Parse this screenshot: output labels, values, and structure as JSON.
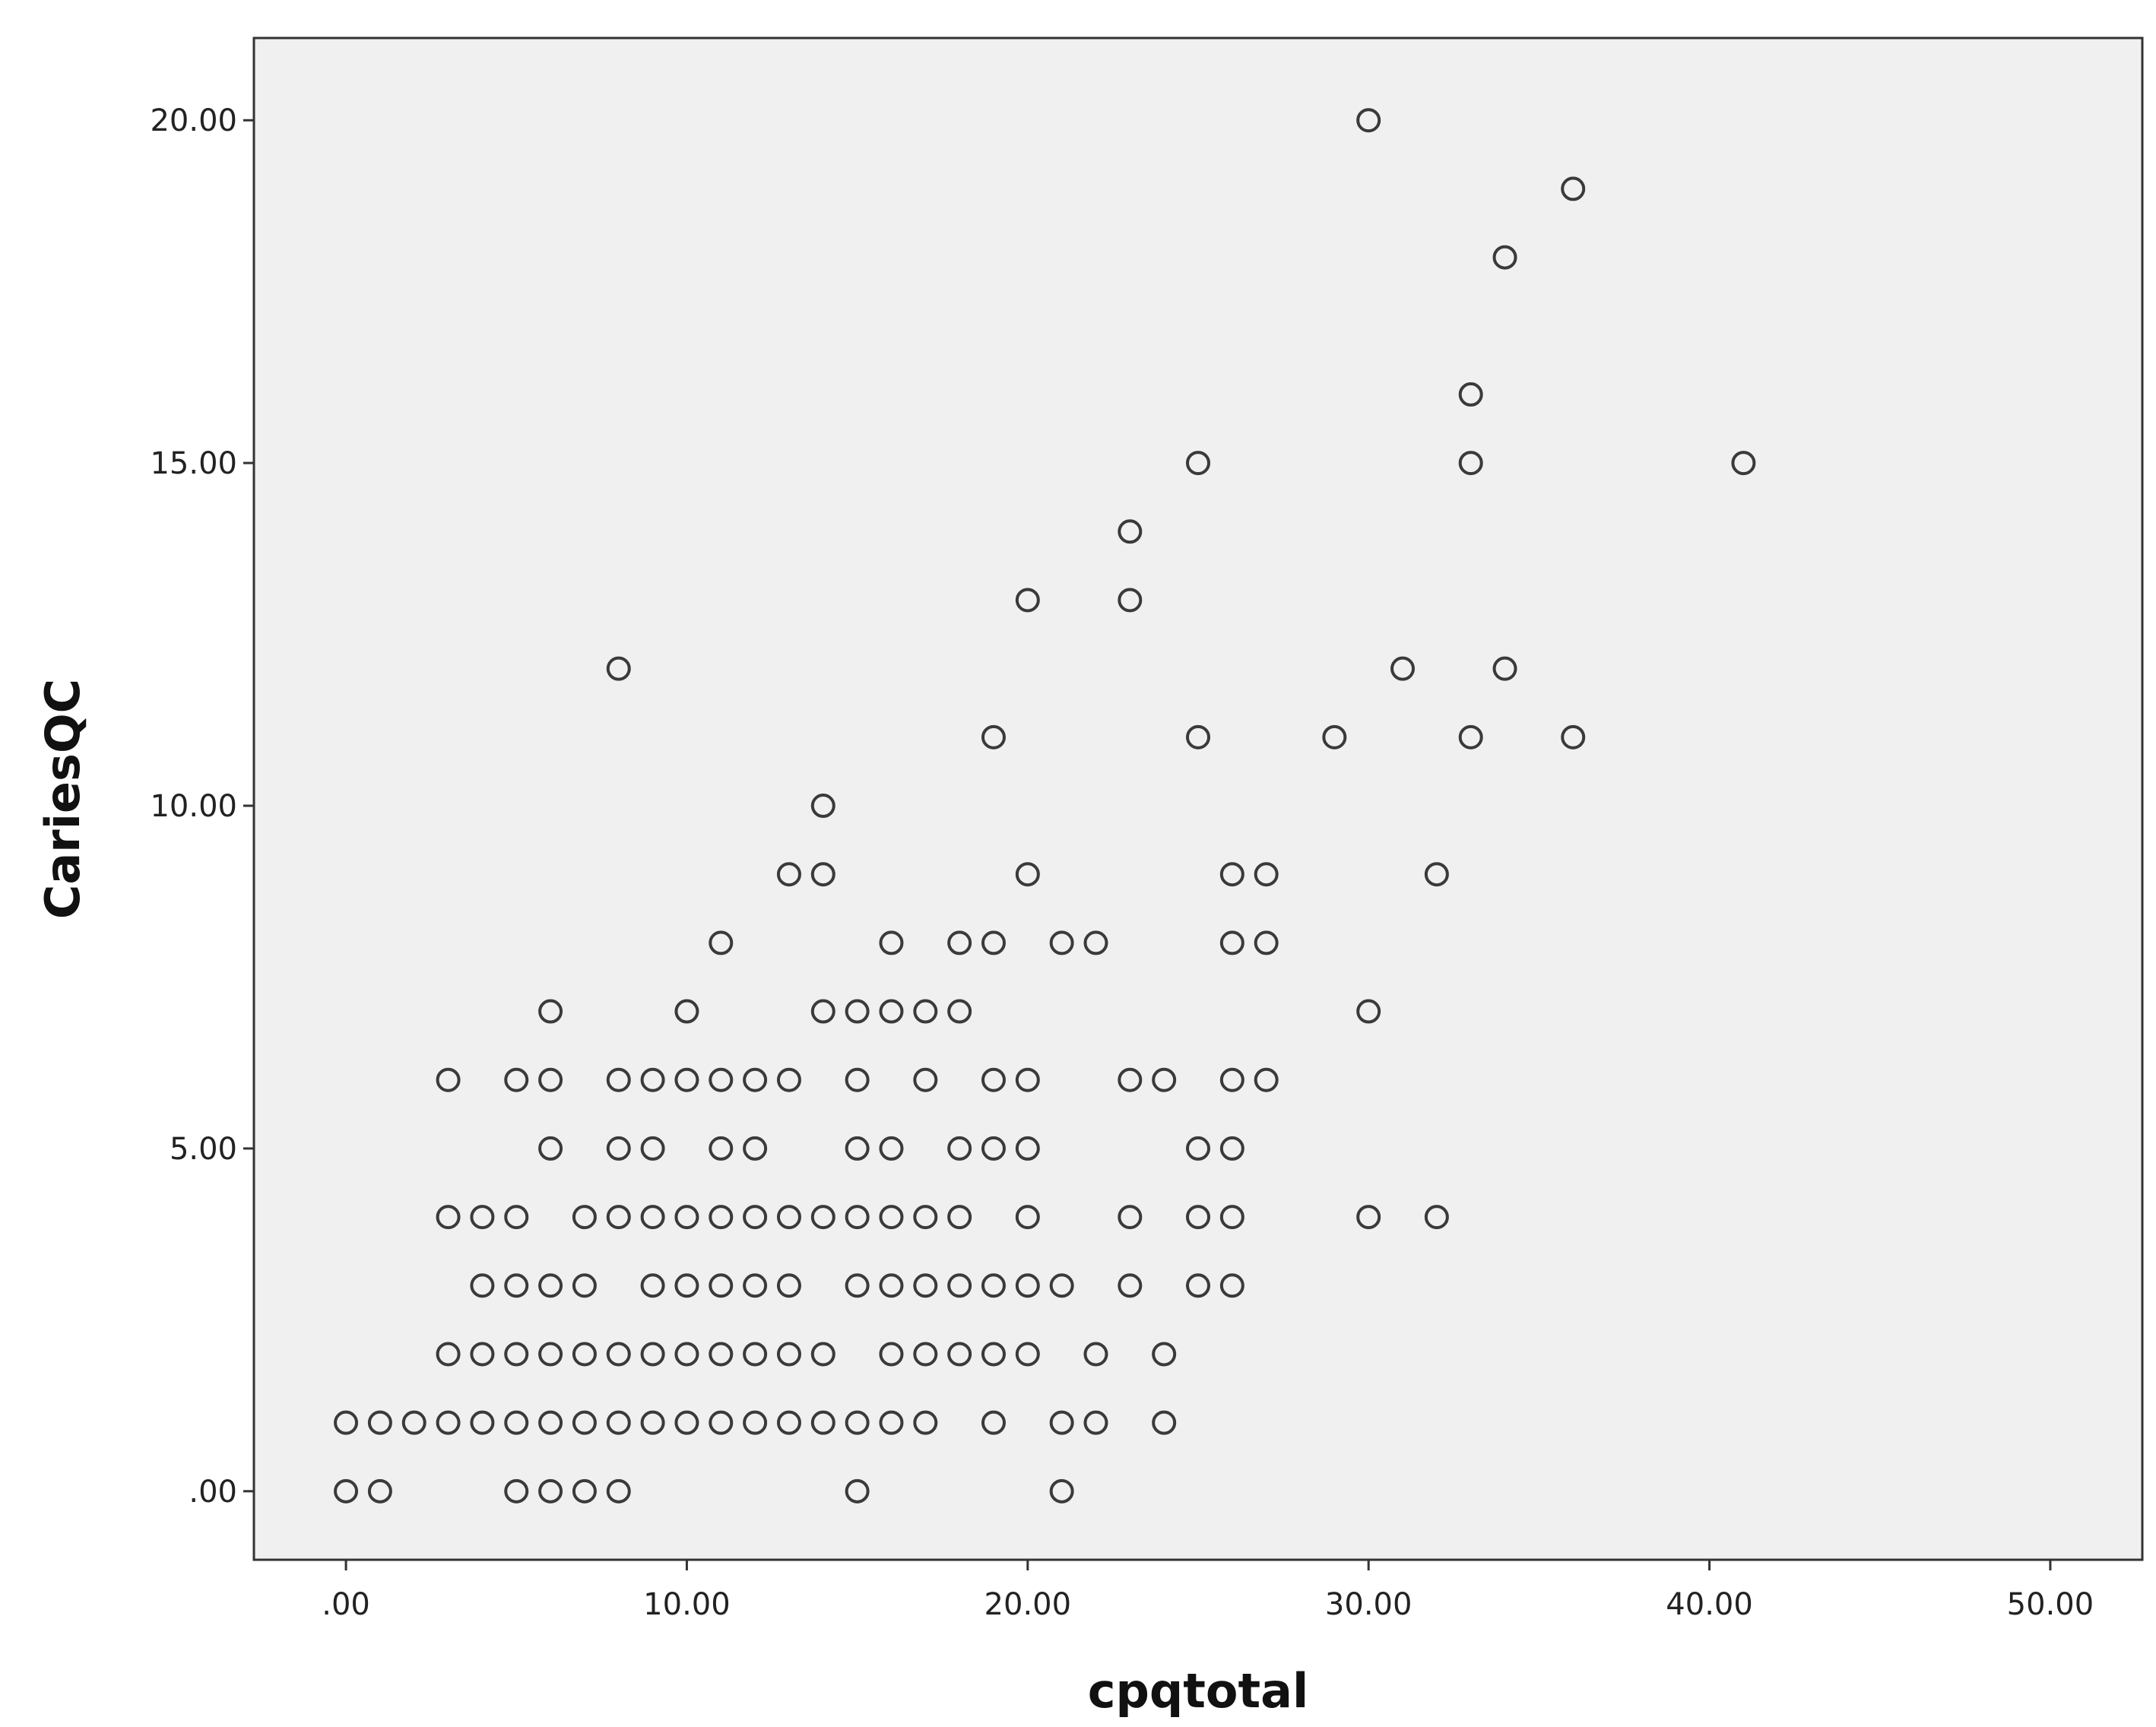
{
  "chart_data": {
    "type": "scatter",
    "title": "",
    "xlabel": "cpqtotal",
    "ylabel": "CariesQC",
    "xlim": [
      -2.7,
      52.7
    ],
    "ylim": [
      -1.0,
      21.2
    ],
    "xticks": [
      0,
      10,
      20,
      30,
      40,
      50
    ],
    "yticks": [
      0,
      5,
      10,
      15,
      20
    ],
    "xtick_labels": [
      ".00",
      "10.00",
      "20.00",
      "30.00",
      "40.00",
      "50.00"
    ],
    "ytick_labels": [
      ".00",
      "5.00",
      "10.00",
      "15.00",
      "20.00"
    ],
    "grid": false,
    "colors": {
      "plot_background": "#f0f0f0",
      "marker_stroke": "#3a3a3a",
      "frame": "#333333"
    },
    "points": [
      [
        30,
        20
      ],
      [
        36,
        19
      ],
      [
        34,
        18
      ],
      [
        33,
        16
      ],
      [
        25,
        15
      ],
      [
        33,
        15
      ],
      [
        41,
        15
      ],
      [
        23,
        14
      ],
      [
        20,
        13
      ],
      [
        23,
        13
      ],
      [
        8,
        12
      ],
      [
        31,
        12
      ],
      [
        34,
        12
      ],
      [
        19,
        11
      ],
      [
        25,
        11
      ],
      [
        29,
        11
      ],
      [
        33,
        11
      ],
      [
        36,
        11
      ],
      [
        14,
        10
      ],
      [
        13,
        9
      ],
      [
        14,
        9
      ],
      [
        20,
        9
      ],
      [
        26,
        9
      ],
      [
        27,
        9
      ],
      [
        32,
        9
      ],
      [
        11,
        8
      ],
      [
        16,
        8
      ],
      [
        18,
        8
      ],
      [
        19,
        8
      ],
      [
        21,
        8
      ],
      [
        22,
        8
      ],
      [
        26,
        8
      ],
      [
        27,
        8
      ],
      [
        6,
        7
      ],
      [
        10,
        7
      ],
      [
        14,
        7
      ],
      [
        15,
        7
      ],
      [
        16,
        7
      ],
      [
        17,
        7
      ],
      [
        18,
        7
      ],
      [
        30,
        7
      ],
      [
        3,
        6
      ],
      [
        5,
        6
      ],
      [
        6,
        6
      ],
      [
        8,
        6
      ],
      [
        9,
        6
      ],
      [
        10,
        6
      ],
      [
        11,
        6
      ],
      [
        12,
        6
      ],
      [
        13,
        6
      ],
      [
        15,
        6
      ],
      [
        17,
        6
      ],
      [
        19,
        6
      ],
      [
        20,
        6
      ],
      [
        23,
        6
      ],
      [
        24,
        6
      ],
      [
        26,
        6
      ],
      [
        27,
        6
      ],
      [
        6,
        5
      ],
      [
        8,
        5
      ],
      [
        9,
        5
      ],
      [
        11,
        5
      ],
      [
        12,
        5
      ],
      [
        15,
        5
      ],
      [
        16,
        5
      ],
      [
        18,
        5
      ],
      [
        19,
        5
      ],
      [
        20,
        5
      ],
      [
        25,
        5
      ],
      [
        26,
        5
      ],
      [
        3,
        4
      ],
      [
        4,
        4
      ],
      [
        5,
        4
      ],
      [
        7,
        4
      ],
      [
        8,
        4
      ],
      [
        9,
        4
      ],
      [
        10,
        4
      ],
      [
        11,
        4
      ],
      [
        12,
        4
      ],
      [
        13,
        4
      ],
      [
        14,
        4
      ],
      [
        15,
        4
      ],
      [
        16,
        4
      ],
      [
        17,
        4
      ],
      [
        18,
        4
      ],
      [
        20,
        4
      ],
      [
        23,
        4
      ],
      [
        25,
        4
      ],
      [
        26,
        4
      ],
      [
        30,
        4
      ],
      [
        32,
        4
      ],
      [
        4,
        3
      ],
      [
        5,
        3
      ],
      [
        6,
        3
      ],
      [
        7,
        3
      ],
      [
        9,
        3
      ],
      [
        10,
        3
      ],
      [
        11,
        3
      ],
      [
        12,
        3
      ],
      [
        13,
        3
      ],
      [
        15,
        3
      ],
      [
        16,
        3
      ],
      [
        17,
        3
      ],
      [
        18,
        3
      ],
      [
        19,
        3
      ],
      [
        20,
        3
      ],
      [
        21,
        3
      ],
      [
        23,
        3
      ],
      [
        25,
        3
      ],
      [
        26,
        3
      ],
      [
        3,
        2
      ],
      [
        4,
        2
      ],
      [
        5,
        2
      ],
      [
        6,
        2
      ],
      [
        7,
        2
      ],
      [
        8,
        2
      ],
      [
        9,
        2
      ],
      [
        10,
        2
      ],
      [
        11,
        2
      ],
      [
        12,
        2
      ],
      [
        13,
        2
      ],
      [
        14,
        2
      ],
      [
        16,
        2
      ],
      [
        17,
        2
      ],
      [
        18,
        2
      ],
      [
        19,
        2
      ],
      [
        20,
        2
      ],
      [
        22,
        2
      ],
      [
        24,
        2
      ],
      [
        0,
        1
      ],
      [
        1,
        1
      ],
      [
        2,
        1
      ],
      [
        3,
        1
      ],
      [
        4,
        1
      ],
      [
        5,
        1
      ],
      [
        6,
        1
      ],
      [
        7,
        1
      ],
      [
        8,
        1
      ],
      [
        9,
        1
      ],
      [
        10,
        1
      ],
      [
        11,
        1
      ],
      [
        12,
        1
      ],
      [
        13,
        1
      ],
      [
        14,
        1
      ],
      [
        15,
        1
      ],
      [
        16,
        1
      ],
      [
        17,
        1
      ],
      [
        19,
        1
      ],
      [
        21,
        1
      ],
      [
        22,
        1
      ],
      [
        24,
        1
      ],
      [
        0,
        0
      ],
      [
        1,
        0
      ],
      [
        5,
        0
      ],
      [
        6,
        0
      ],
      [
        7,
        0
      ],
      [
        8,
        0
      ],
      [
        15,
        0
      ],
      [
        21,
        0
      ]
    ]
  }
}
